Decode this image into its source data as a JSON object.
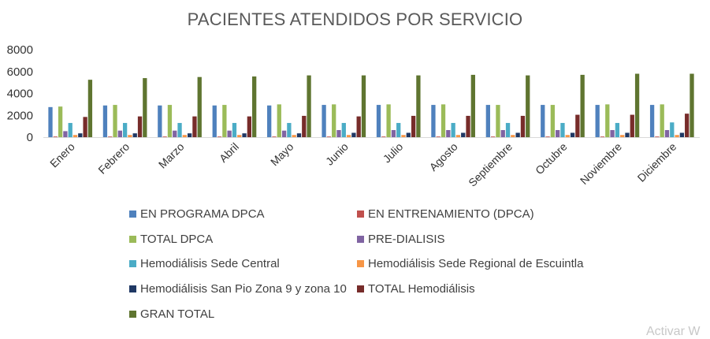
{
  "chart_data": {
    "type": "bar",
    "title": "PACIENTES ATENDIDOS POR SERVICIO",
    "xlabel": "",
    "ylabel": "",
    "ylim": [
      0,
      8000
    ],
    "yticks": [
      "0",
      "2000",
      "4000",
      "6000",
      "8000"
    ],
    "grid": false,
    "legend_position": "bottom",
    "categories": [
      "Enero",
      "Febrero",
      "Marzo",
      "Abril",
      "Mayo",
      "Junio",
      "Julio",
      "Agosto",
      "Septiembre",
      "Octubre",
      "Noviembre",
      "Diciembre"
    ],
    "series": [
      {
        "name": "EN PROGRAMA DPCA",
        "color": "#4F81BD",
        "values": [
          2750,
          2900,
          2900,
          2900,
          2900,
          2950,
          2950,
          2950,
          2950,
          2950,
          2950,
          2950
        ]
      },
      {
        "name": "EN ENTRENAMIENTO (DPCA)",
        "color": "#C0504D",
        "values": [
          60,
          60,
          60,
          60,
          60,
          60,
          60,
          60,
          60,
          60,
          60,
          60
        ]
      },
      {
        "name": "TOTAL DPCA",
        "color": "#9BBB59",
        "values": [
          2800,
          2950,
          2950,
          2950,
          3000,
          3000,
          3000,
          3000,
          2950,
          2950,
          3000,
          3000
        ]
      },
      {
        "name": "PRE-DIALISIS",
        "color": "#8064A2",
        "values": [
          550,
          600,
          600,
          600,
          600,
          650,
          650,
          650,
          650,
          650,
          650,
          650
        ]
      },
      {
        "name": "Hemodiálisis Sede Central",
        "color": "#4BACC6",
        "values": [
          1300,
          1300,
          1300,
          1300,
          1300,
          1300,
          1300,
          1300,
          1300,
          1300,
          1300,
          1350
        ]
      },
      {
        "name": "Hemodiálisis Sede Regional de Escuintla",
        "color": "#F79646",
        "values": [
          200,
          200,
          200,
          200,
          200,
          200,
          200,
          200,
          200,
          200,
          200,
          200
        ]
      },
      {
        "name": "Hemodiálisis San Pio Zona 9 y zona 10",
        "color": "#1F3864",
        "values": [
          350,
          350,
          350,
          350,
          350,
          400,
          400,
          400,
          400,
          400,
          400,
          400
        ]
      },
      {
        "name": "TOTAL Hemodiálisis",
        "color": "#772C2A",
        "values": [
          1850,
          1900,
          1900,
          1900,
          1950,
          1900,
          1950,
          1950,
          1950,
          2050,
          2050,
          2150
        ]
      },
      {
        "name": "GRAN TOTAL",
        "color": "#5F7530",
        "values": [
          5250,
          5400,
          5500,
          5550,
          5650,
          5650,
          5650,
          5700,
          5650,
          5700,
          5800,
          5800
        ]
      }
    ]
  },
  "watermark": "Activar W"
}
